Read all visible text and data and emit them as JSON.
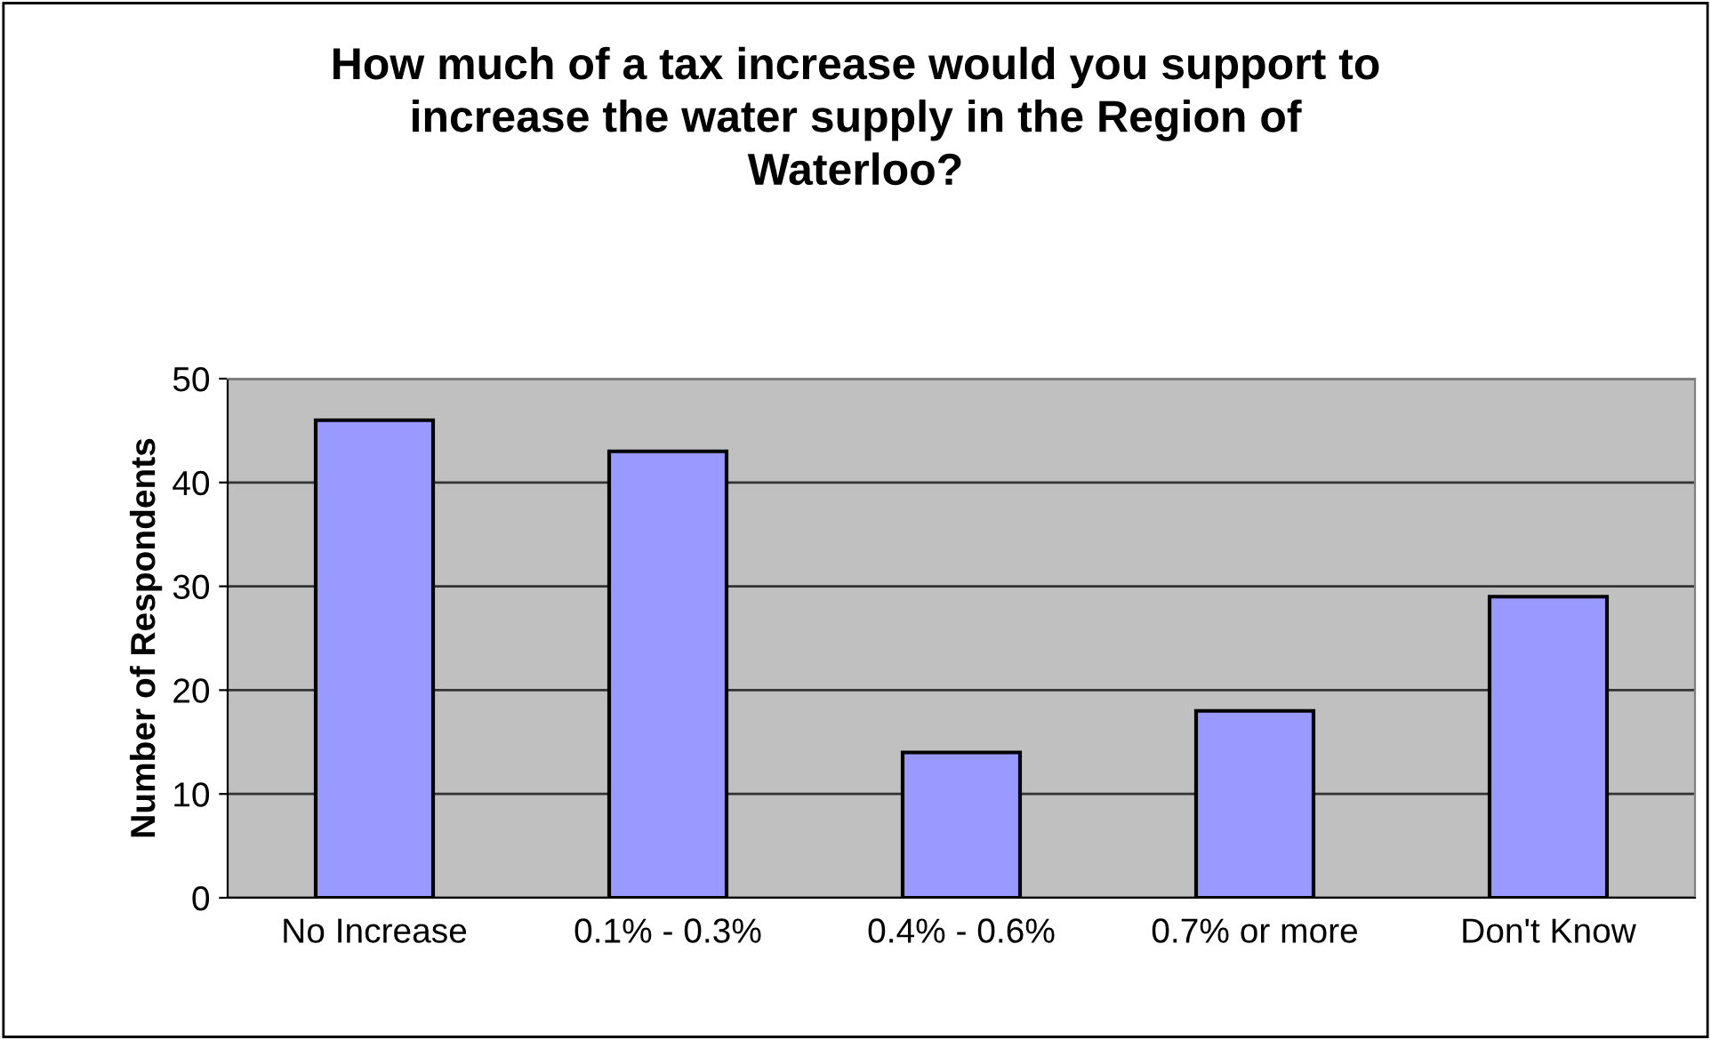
{
  "chart_data": {
    "type": "bar",
    "title": "How much of a tax increase would you support to\nincrease the water supply in the Region of\nWaterloo?",
    "ylabel": "Number of Respondents",
    "categories": [
      "No Increase",
      "0.1% - 0.3%",
      "0.4% - 0.6%",
      "0.7% or more",
      "Don't Know"
    ],
    "values": [
      46,
      43,
      14,
      18,
      29
    ],
    "color": "#9999ff",
    "ylim": [
      0,
      50
    ],
    "yticks": [
      0,
      10,
      20,
      30,
      40,
      50
    ],
    "grid": "y"
  }
}
